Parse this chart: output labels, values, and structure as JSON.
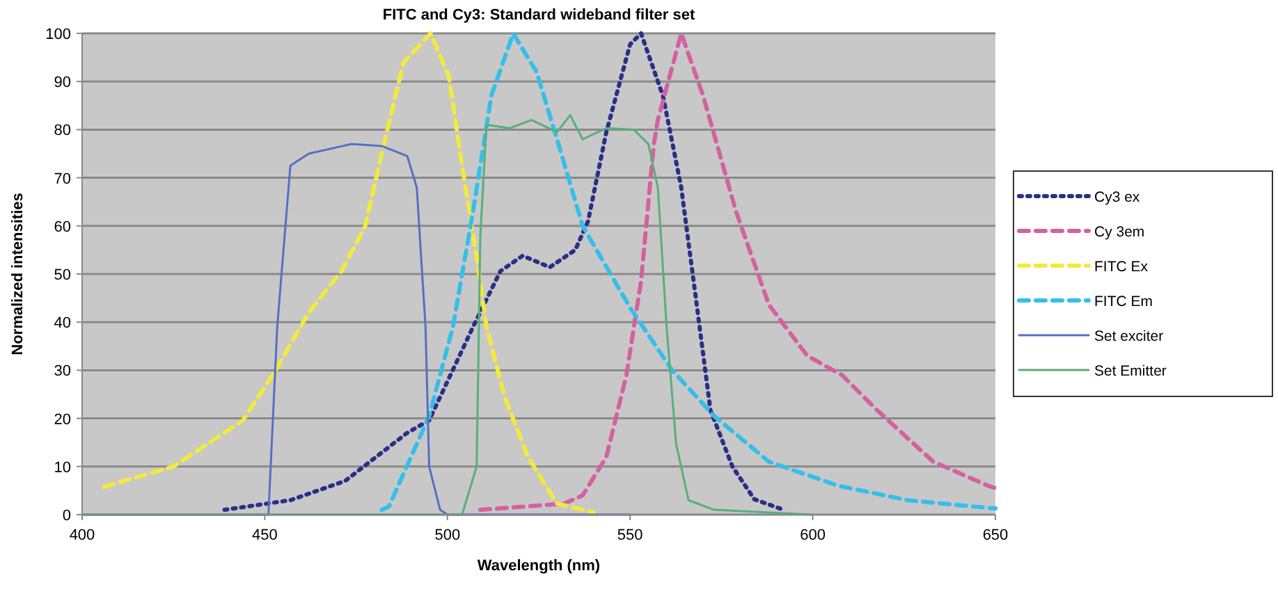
{
  "chart_data": {
    "type": "line",
    "title": "FITC and Cy3: Standard wideband filter set",
    "xlabel": "Wavelength (nm)",
    "ylabel": "Normalized  intensities",
    "xlim": [
      400,
      650
    ],
    "xticks": [
      400,
      450,
      500,
      550,
      600,
      650
    ],
    "ylim": [
      0,
      100
    ],
    "yticks": [
      0,
      10,
      20,
      30,
      40,
      50,
      60,
      70,
      80,
      90,
      100
    ],
    "grid": "y",
    "legend": "right",
    "marker": "none",
    "series": [
      {
        "name": "Cy3 ex",
        "color": "#2b2f86",
        "line_style": "dotted",
        "x": [
          439,
          457,
          472,
          489,
          495,
          507,
          514.5,
          520.6,
          528,
          535,
          538.5,
          543.5,
          550,
          553,
          559,
          564,
          568,
          572,
          578,
          584,
          592
        ],
        "values": [
          1,
          3,
          7,
          17,
          19.6,
          39,
          50.6,
          53.8,
          51.4,
          55,
          61,
          79.5,
          97.7,
          100,
          87,
          68,
          45,
          21.7,
          10,
          3.2,
          1
        ]
      },
      {
        "name": "Cy 3em",
        "color": "#d3629f",
        "line_style": "dashed",
        "x": [
          509,
          532,
          537,
          543.5,
          549,
          553,
          556.5,
          557.6,
          564,
          570,
          579,
          588,
          598.5,
          608,
          617.6,
          633,
          648,
          650
        ],
        "values": [
          1,
          2.3,
          4,
          12,
          29,
          48.5,
          77,
          82,
          100,
          87,
          63,
          43.6,
          33,
          29,
          21.7,
          11,
          6,
          5.5
        ]
      },
      {
        "name": "FITC Ex",
        "color": "#f2ea3c",
        "line_style": "dashed",
        "x": [
          406,
          425,
          444,
          453,
          462,
          471,
          477.5,
          482,
          488,
          495.4,
          500.4,
          504,
          508,
          510.7,
          515.6,
          522,
          530,
          540
        ],
        "values": [
          5.8,
          10,
          19.6,
          30,
          42,
          50.6,
          60,
          75,
          94,
          100,
          91,
          72.5,
          53.5,
          39,
          24.6,
          12,
          2.3,
          0.5
        ]
      },
      {
        "name": "FITC Em",
        "color": "#35bfe8",
        "line_style": "dashed",
        "x": [
          482,
          484,
          495,
          501.5,
          507,
          512,
          518,
          524.4,
          530,
          537,
          550,
          561.5,
          573,
          588,
          607,
          626,
          648,
          650
        ],
        "values": [
          1,
          1.7,
          20.5,
          39,
          63,
          87,
          100,
          92,
          78,
          60,
          43,
          30,
          20.5,
          11,
          6,
          3,
          1.4,
          1.3
        ]
      },
      {
        "name": "Set exciter",
        "color": "#5670c2",
        "line_style": "solid",
        "x": [
          400,
          451,
          453.4,
          457,
          462,
          473.7,
          482,
          489,
          491.6,
          494,
          495,
          498,
          500,
          550
        ],
        "values": [
          0,
          0,
          39,
          72.5,
          75,
          77,
          76.6,
          74.5,
          68,
          39,
          10,
          1,
          0,
          0
        ]
      },
      {
        "name": "Set Emitter",
        "color": "#5aae7a",
        "line_style": "solid",
        "x": [
          400,
          504,
          508,
          509,
          510.7,
          517,
          523,
          530,
          533.6,
          537,
          543.5,
          551,
          555,
          557.6,
          560,
          562.6,
          566,
          573,
          600
        ],
        "values": [
          0,
          0,
          10,
          58,
          81,
          80.3,
          82,
          79.5,
          83,
          78,
          80.3,
          80,
          77,
          68,
          39,
          14.7,
          3,
          1,
          0
        ]
      }
    ]
  }
}
